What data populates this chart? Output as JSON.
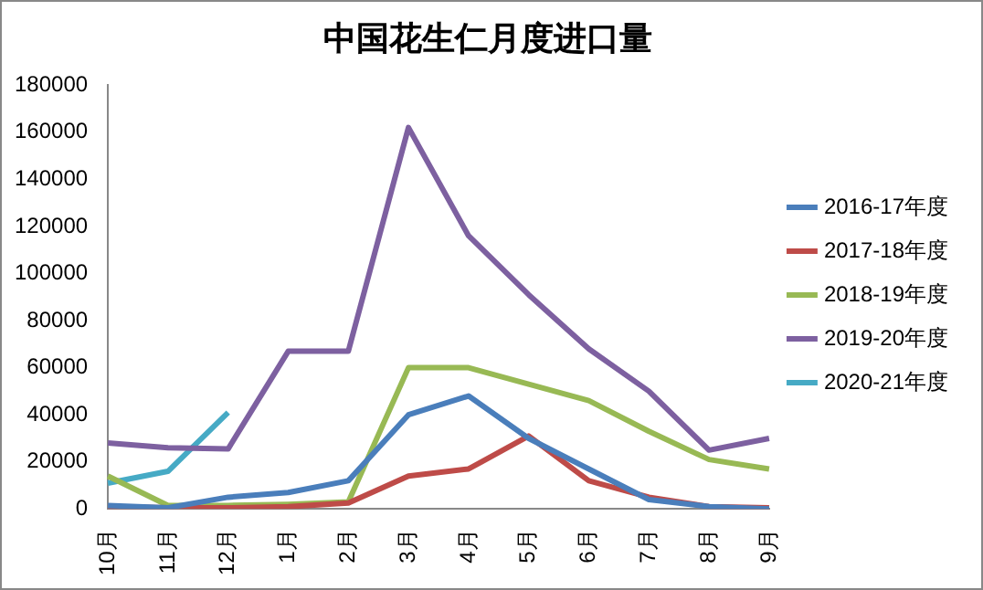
{
  "chart_data": {
    "type": "line",
    "title": "中国花生仁月度进口量",
    "categories": [
      "10月",
      "11月",
      "12月",
      "1月",
      "2月",
      "3月",
      "4月",
      "5月",
      "6月",
      "7月",
      "8月",
      "9月"
    ],
    "series": [
      {
        "name": "2016-17年度",
        "color": "#4a7ebb",
        "values": [
          1500,
          500,
          5000,
          7000,
          12000,
          40000,
          48000,
          30000,
          17000,
          4000,
          1000,
          0
        ]
      },
      {
        "name": "2017-18年度",
        "color": "#be4b48",
        "values": [
          1000,
          500,
          500,
          1000,
          2500,
          14000,
          17000,
          31000,
          12000,
          5000,
          1000,
          500
        ]
      },
      {
        "name": "2018-19年度",
        "color": "#98b954",
        "values": [
          14000,
          1500,
          1500,
          2000,
          3000,
          60000,
          60000,
          53000,
          46000,
          33000,
          21000,
          17000
        ]
      },
      {
        "name": "2019-20年度",
        "color": "#7d60a0",
        "values": [
          28000,
          26000,
          25500,
          67000,
          67000,
          162000,
          116000,
          91000,
          68000,
          50000,
          25000,
          30000
        ]
      },
      {
        "name": "2020-21年度",
        "color": "#46aac5",
        "values": [
          11000,
          16000,
          41000,
          null,
          null,
          null,
          null,
          null,
          null,
          null,
          null,
          null
        ]
      }
    ],
    "ylim": [
      0,
      180000
    ],
    "yticks": [
      0,
      20000,
      40000,
      60000,
      80000,
      100000,
      120000,
      140000,
      160000,
      180000
    ],
    "grid": false,
    "legend": "right",
    "marker": "none",
    "line_style": "solid"
  }
}
